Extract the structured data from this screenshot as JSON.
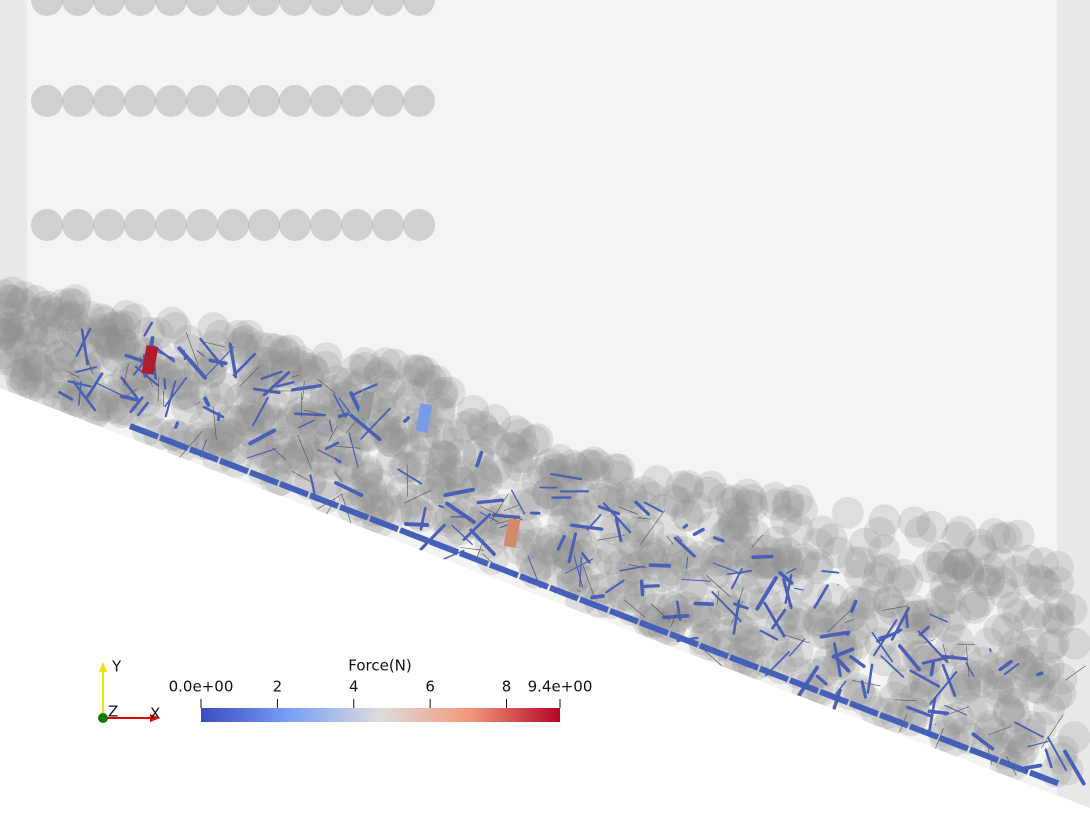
{
  "colorbar": {
    "title": "Force(N)",
    "lim": [
      0,
      9.4
    ],
    "ticks": [
      {
        "value": 0,
        "label": "0.0e+00"
      },
      2,
      4,
      6,
      8,
      {
        "value": 9.4,
        "label": "9.4e+00"
      }
    ]
  },
  "axes_triad": {
    "y": "Y",
    "z": "Z",
    "x": "X"
  }
}
